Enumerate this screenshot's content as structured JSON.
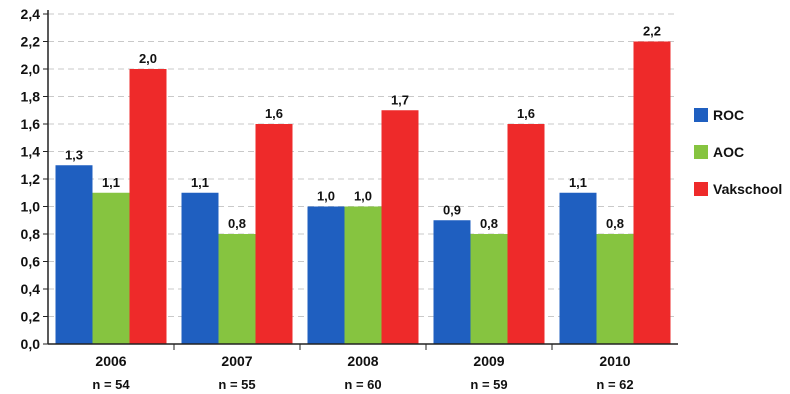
{
  "chart_data": {
    "type": "bar",
    "title": "",
    "xlabel": "",
    "ylabel": "",
    "ylim": [
      0,
      2.4
    ],
    "ytick_step": 0.2,
    "grid": true,
    "legend_placement": "right",
    "categories": [
      "2006",
      "2007",
      "2008",
      "2009",
      "2010"
    ],
    "category_sublabels": [
      "n = 54",
      "n = 55",
      "n = 60",
      "n = 59",
      "n = 62"
    ],
    "series": [
      {
        "name": "ROC",
        "color": "#1f5fc0",
        "values": [
          1.3,
          1.1,
          1.0,
          0.9,
          1.1
        ],
        "labels": [
          "1,3",
          "1,1",
          "1,0",
          "0,9",
          "1,1"
        ]
      },
      {
        "name": "AOC",
        "color": "#86c440",
        "values": [
          1.1,
          0.8,
          1.0,
          0.8,
          0.8
        ],
        "labels": [
          "1,1",
          "0,8",
          "1,0",
          "0,8",
          "0,8"
        ]
      },
      {
        "name": "Vakschool",
        "color": "#ee2a2a",
        "values": [
          2.0,
          1.6,
          1.7,
          1.6,
          2.2
        ],
        "labels": [
          "2,0",
          "1,6",
          "1,7",
          "1,6",
          "2,2"
        ]
      }
    ],
    "ytick_labels": [
      "0,0",
      "0,2",
      "0,4",
      "0,6",
      "0,8",
      "1,0",
      "1,2",
      "1,4",
      "1,6",
      "1,8",
      "2,0",
      "2,2",
      "2,4"
    ]
  }
}
